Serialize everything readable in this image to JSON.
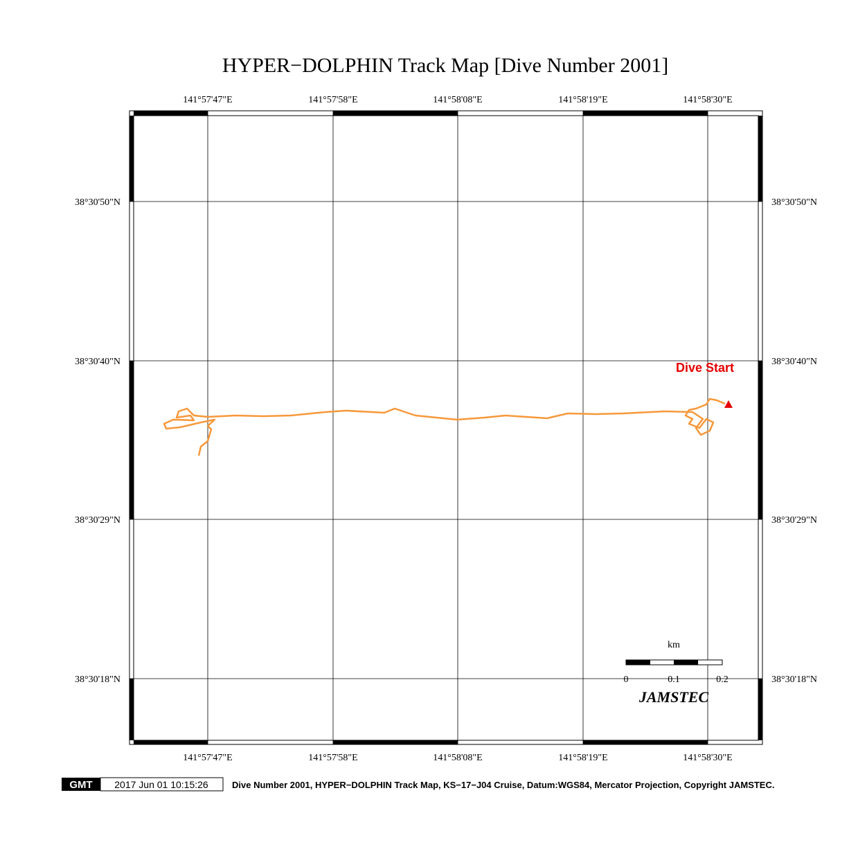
{
  "title": "HYPER−DOLPHIN Track Map [Dive Number 2001]",
  "top_labels": [
    "141°57'47\"E",
    "141°57'58\"E",
    "141°58'08\"E",
    "141°58'19\"E",
    "141°58'30\"E"
  ],
  "bottom_labels": [
    "141°57'47\"E",
    "141°57'58\"E",
    "141°58'08\"E",
    "141°58'19\"E",
    "141°58'30\"E"
  ],
  "left_labels": [
    "38°30'50\"N",
    "38°30'40\"N",
    "38°30'29\"N",
    "38°30'18\"N"
  ],
  "right_labels": [
    "38°30'50\"N",
    "38°30'40\"N",
    "38°30'29\"N",
    "38°30'18\"N"
  ],
  "annotation": "Dive Start",
  "scale_bar": {
    "unit": "km",
    "labels": [
      "0",
      "0.1",
      "0.2"
    ]
  },
  "credit": "JAMSTEC",
  "footer": {
    "logo": "GMT",
    "timestamp": "2017 Jun 01 10:15:26",
    "caption": "Dive Number 2001, HYPER−DOLPHIN Track Map, KS−17−J04 Cruise, Datum:WGS84, Mercator Projection, Copyright JAMSTEC."
  }
}
